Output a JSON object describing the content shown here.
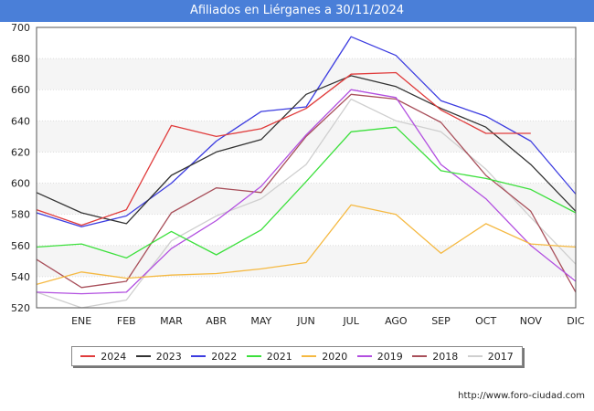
{
  "title": "Afiliados en Liérganes a 30/11/2024",
  "footer_url": "http://www.foro-ciudad.com",
  "chart_data": {
    "type": "line",
    "title": "Afiliados en Liérganes a 30/11/2024",
    "x": [
      "",
      "ENE",
      "FEB",
      "MAR",
      "ABR",
      "MAY",
      "JUN",
      "JUL",
      "AGO",
      "SEP",
      "OCT",
      "NOV",
      "DIC"
    ],
    "ylim": [
      520,
      700
    ],
    "yticks": [
      520,
      540,
      560,
      580,
      600,
      620,
      640,
      660,
      680,
      700
    ],
    "grid": "horizontal",
    "legend_position": "bottom",
    "series": [
      {
        "name": "2024",
        "color": "#e03c3c",
        "values": [
          583,
          573,
          583,
          637,
          630,
          635,
          648,
          670,
          671,
          647,
          632,
          632,
          null
        ]
      },
      {
        "name": "2023",
        "color": "#333333",
        "values": [
          594,
          581,
          574,
          605,
          620,
          628,
          657,
          669,
          662,
          648,
          636,
          612,
          582
        ]
      },
      {
        "name": "2022",
        "color": "#3c3ce0",
        "values": [
          581,
          572,
          579,
          600,
          627,
          646,
          649,
          694,
          682,
          653,
          643,
          627,
          593
        ]
      },
      {
        "name": "2021",
        "color": "#3ce03c",
        "values": [
          559,
          561,
          552,
          569,
          554,
          570,
          601,
          633,
          636,
          608,
          603,
          596,
          581
        ]
      },
      {
        "name": "2020",
        "color": "#f5b942",
        "values": [
          535,
          543,
          539,
          541,
          542,
          545,
          549,
          586,
          580,
          555,
          574,
          561,
          559
        ]
      },
      {
        "name": "2019",
        "color": "#b24fe0",
        "values": [
          530,
          529,
          530,
          558,
          576,
          598,
          631,
          660,
          655,
          612,
          590,
          560,
          537
        ]
      },
      {
        "name": "2018",
        "color": "#a84f5a",
        "values": [
          551,
          533,
          537,
          581,
          597,
          594,
          630,
          657,
          654,
          639,
          605,
          582,
          530
        ]
      },
      {
        "name": "2017",
        "color": "#cfcfcf",
        "values": [
          530,
          520,
          525,
          563,
          579,
          590,
          612,
          654,
          640,
          633,
          609,
          578,
          548
        ]
      }
    ]
  }
}
